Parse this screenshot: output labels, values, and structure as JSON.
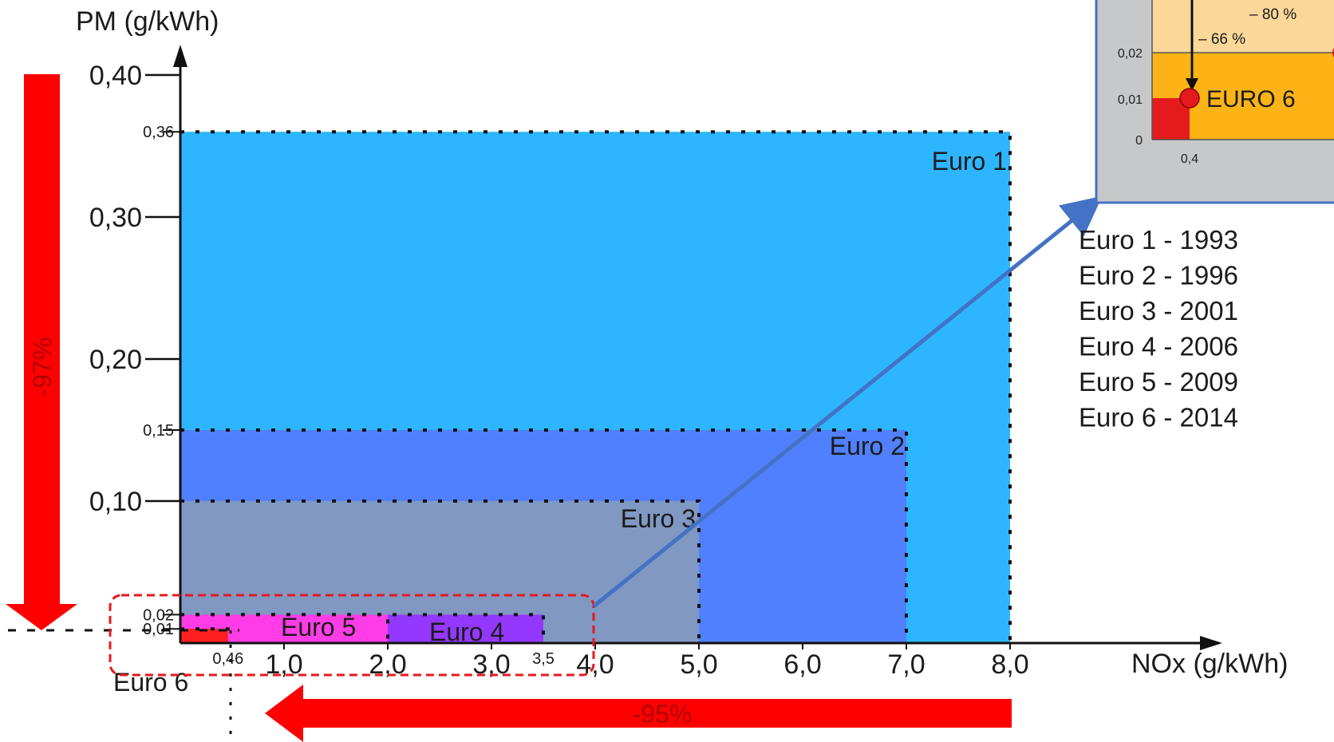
{
  "chart_data": {
    "type": "area",
    "xlabel": "NOx (g/kWh)",
    "ylabel": "PM (g/kWh)",
    "xlim": [
      0,
      8.0
    ],
    "ylim": [
      0,
      0.4
    ],
    "x_ticks": [
      "1,0",
      "2,0",
      "3,0",
      "4,0",
      "5,0",
      "6,0",
      "7,0",
      "8,0"
    ],
    "x_ticks_small": [
      "0,46",
      "3,5"
    ],
    "y_ticks": [
      "0,40",
      "0,30",
      "0,20",
      "0,10"
    ],
    "y_ticks_small": [
      "0,36",
      "0,15",
      "0,02",
      "0,01"
    ],
    "series": [
      {
        "name": "Euro 1",
        "nox": 8.0,
        "pm": 0.36,
        "color": "#2db6ff"
      },
      {
        "name": "Euro 2",
        "nox": 7.0,
        "pm": 0.15,
        "color": "#5080ff"
      },
      {
        "name": "Euro 3",
        "nox": 5.0,
        "pm": 0.1,
        "color": "#8098c2"
      },
      {
        "name": "Euro 4",
        "nox": 3.5,
        "pm": 0.02,
        "color": "#9438ff"
      },
      {
        "name": "Euro 5",
        "nox": 2.0,
        "pm": 0.02,
        "color": "#ff3ce6"
      },
      {
        "name": "Euro 6",
        "nox": 0.46,
        "pm": 0.01,
        "color": "#ff2020"
      }
    ],
    "legend": [
      "Euro 1 - 1993",
      "Euro 2 - 1996",
      "Euro 3 - 2001",
      "Euro 4 - 2006",
      "Euro 5 - 2009",
      "Euro 6 - 2014"
    ],
    "annotations": {
      "pm_reduction": "-97%",
      "nox_reduction": "-95%"
    },
    "inset": {
      "y_ticks": [
        "0,02",
        "0,01",
        "0"
      ],
      "x_tick": "0,4",
      "label": "EURO 6",
      "pct_a": "– 80 %",
      "pct_b": "– 66 %"
    },
    "colors": {
      "arrow": "#ff0000",
      "highlight_box": "#e41a1c",
      "connector": "#4472c4"
    }
  }
}
